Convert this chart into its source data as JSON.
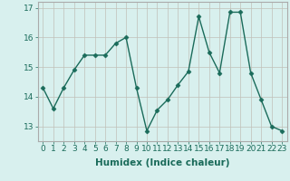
{
  "x": [
    0,
    1,
    2,
    3,
    4,
    5,
    6,
    7,
    8,
    9,
    10,
    11,
    12,
    13,
    14,
    15,
    16,
    17,
    18,
    19,
    20,
    21,
    22,
    23
  ],
  "y": [
    14.3,
    13.6,
    14.3,
    14.9,
    15.4,
    15.4,
    15.4,
    15.8,
    16.0,
    14.3,
    12.85,
    13.55,
    13.9,
    14.4,
    14.85,
    16.7,
    15.5,
    14.8,
    16.85,
    16.85,
    14.8,
    13.9,
    13.0,
    12.85
  ],
  "line_color": "#1a6b5a",
  "marker": "D",
  "markersize": 2.5,
  "linewidth": 1.0,
  "xlabel": "Humidex (Indice chaleur)",
  "xlim": [
    -0.5,
    23.5
  ],
  "ylim": [
    12.5,
    17.2
  ],
  "yticks": [
    13,
    14,
    15,
    16,
    17
  ],
  "xticks": [
    0,
    1,
    2,
    3,
    4,
    5,
    6,
    7,
    8,
    9,
    10,
    11,
    12,
    13,
    14,
    15,
    16,
    17,
    18,
    19,
    20,
    21,
    22,
    23
  ],
  "bg_color": "#d8f0ee",
  "grid_color": "#c0c0b8",
  "tick_fontsize": 6.5,
  "xlabel_fontsize": 7.5
}
